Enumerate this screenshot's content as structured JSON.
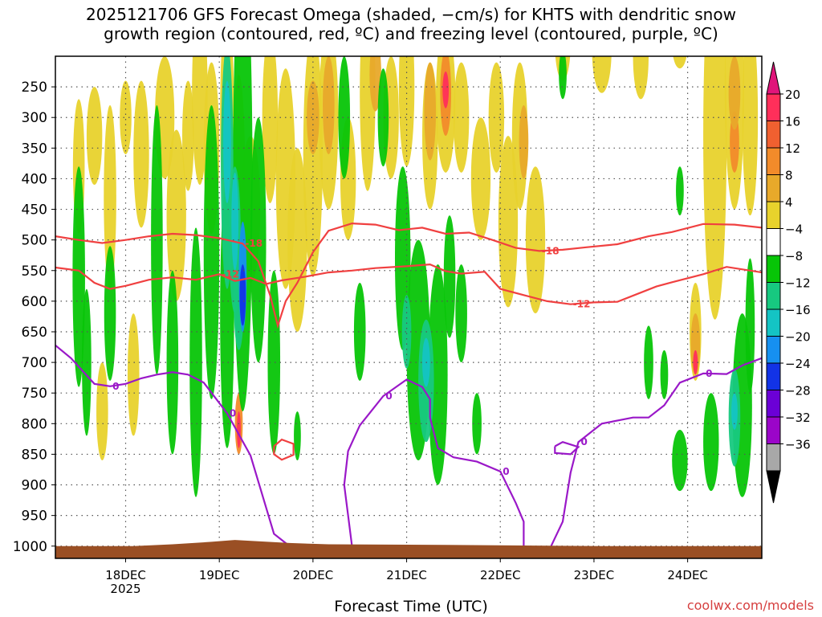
{
  "chart_data": {
    "type": "heatmap",
    "title_line1": "2025121706 GFS Forecast Omega (shaded, −cm/s) for KHTS with dendritic snow",
    "title_line2": "growth region (contoured, red, ºC) and freezing level (contoured, purple, ºC)",
    "xlabel": "Forecast Time (UTC)",
    "ylabel": "",
    "credit": "coolwx.com/models",
    "x_ticks": [
      {
        "label": "18DEC",
        "sub": "2025",
        "hour": 18
      },
      {
        "label": "19DEC",
        "sub": "",
        "hour": 42
      },
      {
        "label": "20DEC",
        "sub": "",
        "hour": 66
      },
      {
        "label": "21DEC",
        "sub": "",
        "hour": 90
      },
      {
        "label": "22DEC",
        "sub": "",
        "hour": 114
      },
      {
        "label": "23DEC",
        "sub": "",
        "hour": 138
      },
      {
        "label": "24DEC",
        "sub": "",
        "hour": 162
      }
    ],
    "x_range_hours": [
      0,
      181
    ],
    "y_ticks": [
      250,
      300,
      350,
      400,
      450,
      500,
      550,
      600,
      650,
      700,
      750,
      800,
      850,
      900,
      950,
      1000
    ],
    "y_range_hPa": [
      200,
      1020
    ],
    "colorbar": {
      "labels": [
        "20",
        "16",
        "12",
        "8",
        "4",
        "−4",
        "−8",
        "−12",
        "−16",
        "−20",
        "−24",
        "−28",
        "−32",
        "−36"
      ],
      "colors": [
        "#ff2f5a",
        "#f06030",
        "#f28b2a",
        "#e8a92a",
        "#e8d22c",
        "#ffffff",
        "#07c507",
        "#17c980",
        "#14c4c4",
        "#1690f0",
        "#1233e6",
        "#6b00d6",
        "#9b05c9",
        "#a8a8a8"
      ],
      "top_color": "#e0157a",
      "bottom_color": "#000000"
    },
    "contours": {
      "dendritic_minus18": {
        "color": "#f04040",
        "label": "-18",
        "points": [
          [
            0,
            494
          ],
          [
            6,
            500
          ],
          [
            12,
            505
          ],
          [
            18,
            500
          ],
          [
            24,
            494
          ],
          [
            30,
            490
          ],
          [
            36,
            492
          ],
          [
            42,
            497
          ],
          [
            48,
            506
          ],
          [
            52,
            535
          ],
          [
            55,
            590
          ],
          [
            57,
            640
          ],
          [
            59,
            600
          ],
          [
            62,
            570
          ],
          [
            66,
            520
          ],
          [
            70,
            485
          ],
          [
            76,
            473
          ],
          [
            82,
            475
          ],
          [
            88,
            484
          ],
          [
            94,
            480
          ],
          [
            100,
            490
          ],
          [
            106,
            488
          ],
          [
            112,
            500
          ],
          [
            118,
            513
          ],
          [
            124,
            518
          ],
          [
            130,
            516
          ],
          [
            136,
            512
          ],
          [
            144,
            507
          ],
          [
            152,
            494
          ],
          [
            158,
            487
          ],
          [
            166,
            474
          ],
          [
            174,
            475
          ],
          [
            181,
            480
          ]
        ]
      },
      "dendritic_minus12": {
        "color": "#f04040",
        "label": "-12",
        "points": [
          [
            0,
            545
          ],
          [
            6,
            550
          ],
          [
            10,
            570
          ],
          [
            14,
            580
          ],
          [
            18,
            575
          ],
          [
            24,
            565
          ],
          [
            30,
            561
          ],
          [
            36,
            565
          ],
          [
            42,
            556
          ],
          [
            46,
            567
          ],
          [
            50,
            562
          ],
          [
            54,
            572
          ],
          [
            58,
            566
          ],
          [
            64,
            560
          ],
          [
            70,
            553
          ],
          [
            76,
            550
          ],
          [
            82,
            546
          ],
          [
            90,
            543
          ],
          [
            96,
            540
          ],
          [
            100,
            551
          ],
          [
            104,
            555
          ],
          [
            110,
            552
          ],
          [
            114,
            580
          ],
          [
            120,
            590
          ],
          [
            126,
            600
          ],
          [
            132,
            605
          ],
          [
            138,
            602
          ],
          [
            144,
            601
          ],
          [
            150,
            586
          ],
          [
            154,
            576
          ],
          [
            158,
            569
          ],
          [
            166,
            556
          ],
          [
            172,
            544
          ],
          [
            181,
            553
          ]
        ]
      },
      "dendritic_small": {
        "color": "#f04040",
        "points": [
          [
            56,
            837
          ],
          [
            58,
            826
          ],
          [
            61,
            833
          ],
          [
            61,
            851
          ],
          [
            58,
            859
          ],
          [
            56,
            850
          ],
          [
            56,
            837
          ]
        ]
      },
      "freezing_0": {
        "color": "#9a18c8",
        "label": "0",
        "points": [
          [
            0,
            672
          ],
          [
            4,
            693
          ],
          [
            10,
            735
          ],
          [
            14,
            739
          ],
          [
            18,
            735
          ],
          [
            22,
            726
          ],
          [
            26,
            720
          ],
          [
            30,
            716
          ],
          [
            34,
            720
          ],
          [
            38,
            733
          ],
          [
            44,
            783
          ],
          [
            50,
            852
          ],
          [
            56,
            980
          ],
          [
            60,
            1000
          ]
        ]
      },
      "freezing_0_b": {
        "color": "#9a18c8",
        "label": "0",
        "points": [
          [
            76,
            1000
          ],
          [
            74,
            900
          ],
          [
            75,
            845
          ],
          [
            78,
            803
          ],
          [
            84,
            755
          ],
          [
            90,
            728
          ],
          [
            94,
            740
          ],
          [
            96,
            760
          ],
          [
            96,
            790
          ],
          [
            98,
            840
          ],
          [
            102,
            855
          ],
          [
            108,
            862
          ],
          [
            114,
            878
          ],
          [
            118,
            930
          ],
          [
            120,
            960
          ],
          [
            120,
            1000
          ]
        ]
      },
      "freezing_0_c": {
        "color": "#9a18c8",
        "label": "0",
        "points": [
          [
            127,
            1000
          ],
          [
            130,
            960
          ],
          [
            132,
            880
          ],
          [
            134,
            830
          ],
          [
            140,
            800
          ],
          [
            148,
            790
          ],
          [
            152,
            790
          ],
          [
            156,
            770
          ],
          [
            160,
            733
          ],
          [
            166,
            718
          ],
          [
            172,
            719
          ],
          [
            176,
            705
          ],
          [
            181,
            693
          ]
        ]
      },
      "freezing_0_d": {
        "color": "#9a18c8",
        "points": [
          [
            128,
            837
          ],
          [
            130,
            830
          ],
          [
            134,
            838
          ],
          [
            132,
            850
          ],
          [
            128,
            848
          ],
          [
            128,
            837
          ]
        ]
      }
    },
    "omega_blobs_note": "Shaded omega field; values in -cm/s. Positive (yellow-red) = ascent, negative (green-blue) = descent."
  }
}
